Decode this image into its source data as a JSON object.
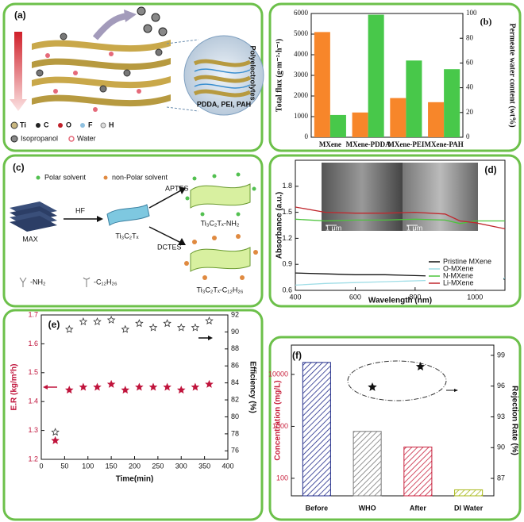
{
  "panel_a": {
    "label": "(a)",
    "elements": [
      "Ti",
      "C",
      "O",
      "F",
      "H"
    ],
    "isopropanol": "Isopropanol",
    "water": "Water",
    "inset_title": "Polyelectrolytes",
    "inset_caption": "PDDA, PEI, PAH"
  },
  "panel_c": {
    "label": "(c)",
    "polar": "Polar solvent",
    "nonpolar": "non-Polar solvent",
    "max": "MAX",
    "hf": "HF",
    "mxene": "Ti₃C₂Tₓ",
    "aptes": "APTES",
    "dctes": "DCTES",
    "product_nh2": "Ti₃C₂Tₓ-NH₂",
    "product_c12": "Ti₃C₂Tₓ-C₁₂H₂₆",
    "group_nh2": "-NH₂",
    "group_c12": "-C₁₂H₂₆"
  },
  "chart_data": [
    {
      "type": "bar",
      "label": "(b)",
      "categories": [
        "MXene",
        "MXene-PDDA",
        "MXene-PEI",
        "MXene-PAH"
      ],
      "ylabel": "Total flux (g·m⁻²·h⁻¹)",
      "y2label": "Permeate water content (wt%)",
      "ylim": [
        0,
        6000
      ],
      "yticks": [
        0,
        1000,
        2000,
        3000,
        4000,
        5000,
        6000
      ],
      "y2lim": [
        0,
        100
      ],
      "y2ticks": [
        0,
        20,
        40,
        60,
        80,
        100
      ],
      "series": [
        {
          "color": "#f7862a",
          "values": [
            5100,
            1200,
            1900,
            1700
          ]
        },
        {
          "color": "#48c84a",
          "values": [
            18,
            99,
            62,
            55
          ],
          "axis": "y2"
        }
      ]
    },
    {
      "type": "line",
      "label": "(d)",
      "xlabel": "Wavelength (nm)",
      "ylabel": "Absorbance (a.u.)",
      "x": [
        400,
        500,
        600,
        700,
        800,
        900,
        950,
        1000,
        1100
      ],
      "xlim": [
        400,
        1100
      ],
      "xticks": [
        400,
        600,
        800,
        1000
      ],
      "ylim": [
        0.6,
        2.1
      ],
      "yticks": [
        0.6,
        0.9,
        1.2,
        1.5,
        1.8
      ],
      "inset_scale": [
        "1 μm",
        "1 μm"
      ],
      "legend": "lower right",
      "series": [
        {
          "name": "Pristine MXene",
          "color": "#111111",
          "values": [
            0.8,
            0.79,
            0.78,
            0.78,
            0.77,
            0.76,
            0.74,
            0.75,
            0.73
          ]
        },
        {
          "name": "O-MXene",
          "color": "#9fdde6",
          "values": [
            0.66,
            0.68,
            0.69,
            0.7,
            0.71,
            0.72,
            0.72,
            0.73,
            0.74
          ]
        },
        {
          "name": "N-MXene",
          "color": "#4cc43c",
          "values": [
            1.42,
            1.4,
            1.41,
            1.41,
            1.42,
            1.41,
            1.37,
            1.4,
            1.4
          ]
        },
        {
          "name": "Li-MXene",
          "color": "#c0272d",
          "values": [
            1.56,
            1.5,
            1.49,
            1.49,
            1.5,
            1.48,
            1.4,
            1.38,
            1.31
          ]
        }
      ]
    },
    {
      "type": "scatter",
      "label": "(e)",
      "xlabel": "Time(min)",
      "ylabel": "E.R (kg/m²h)",
      "y2label": "Efficiency (%)",
      "x": [
        30,
        60,
        90,
        120,
        150,
        180,
        210,
        240,
        270,
        300,
        330,
        360
      ],
      "xlim": [
        0,
        400
      ],
      "xticks": [
        0,
        50,
        100,
        150,
        200,
        250,
        300,
        350,
        400
      ],
      "ylim": [
        1.2,
        1.7
      ],
      "yticks": [
        1.2,
        1.3,
        1.4,
        1.5,
        1.6,
        1.7
      ],
      "y2lim": [
        75,
        92
      ],
      "y2ticks": [
        76,
        78,
        80,
        82,
        84,
        86,
        88,
        90,
        92
      ],
      "series": [
        {
          "color": "#c0143c",
          "values": [
            1.265,
            1.44,
            1.45,
            1.45,
            1.46,
            1.44,
            1.45,
            1.45,
            1.45,
            1.44,
            1.45,
            1.46
          ]
        },
        {
          "color": "#333333",
          "values": [
            78.2,
            90.3,
            91.2,
            91.2,
            91.4,
            90.3,
            91.0,
            90.5,
            91.0,
            90.5,
            90.5,
            91.3
          ],
          "axis": "y2"
        }
      ]
    },
    {
      "type": "bar",
      "label": "(f)",
      "log": true,
      "categories": [
        "Before",
        "WHO",
        "After",
        "DI Water"
      ],
      "ylabel": "Concentration (mg/L)",
      "y2label": "Rejection Rate (%)",
      "ylim": [
        46,
        36700
      ],
      "yticks": [
        100,
        1000,
        10000
      ],
      "y2lim": [
        85.3,
        100
      ],
      "y2ticks": [
        87,
        90,
        93,
        96,
        99
      ],
      "series": [
        {
          "colors": [
            "#1f2a8a",
            "#7a7a7a",
            "#c8203c",
            "#a8b818"
          ],
          "values": [
            17000,
            800,
            400,
            60
          ]
        }
      ],
      "rejection": {
        "color": "#111111",
        "values": [
          95.9,
          97.9
        ]
      }
    }
  ]
}
